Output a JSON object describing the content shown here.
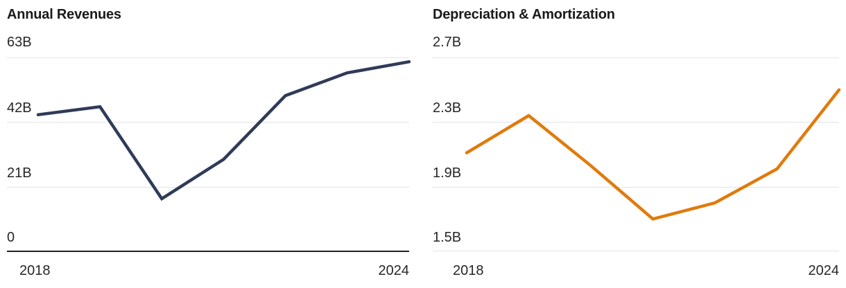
{
  "page_background": "#ffffff",
  "chart_data": [
    {
      "type": "line",
      "title": "Annual Revenues",
      "x": [
        2018,
        2019,
        2020,
        2021,
        2022,
        2023,
        2024
      ],
      "values": [
        44.4,
        47.0,
        17.1,
        29.9,
        50.6,
        58.0,
        61.6
      ],
      "unit": "B",
      "ylim": [
        0,
        63
      ],
      "ytick_labels": [
        "63B",
        "42B",
        "21B",
        "0"
      ],
      "xtick_labels": [
        "2018",
        "2024"
      ],
      "line_color": "#303b58",
      "grid": true,
      "legend": "none",
      "x_baseline": "dark"
    },
    {
      "type": "line",
      "title": "Depreciation & Amortization",
      "x": [
        2018,
        2019,
        2020,
        2021,
        2022,
        2023,
        2024
      ],
      "values": [
        2.11,
        2.34,
        2.03,
        1.7,
        1.8,
        2.01,
        2.5
      ],
      "unit": "B",
      "ylim": [
        1.5,
        2.7
      ],
      "ytick_labels": [
        "2.7B",
        "2.3B",
        "1.9B",
        "1.5B"
      ],
      "xtick_labels": [
        "2018",
        "2024"
      ],
      "line_color": "#e07b0c",
      "grid": true,
      "legend": "none",
      "x_baseline": "light"
    }
  ],
  "colors": {
    "title_text": "#1a1a1a",
    "tick_text": "#262626",
    "gridline": "#e4e4e4",
    "dark_axis": "#202020"
  }
}
